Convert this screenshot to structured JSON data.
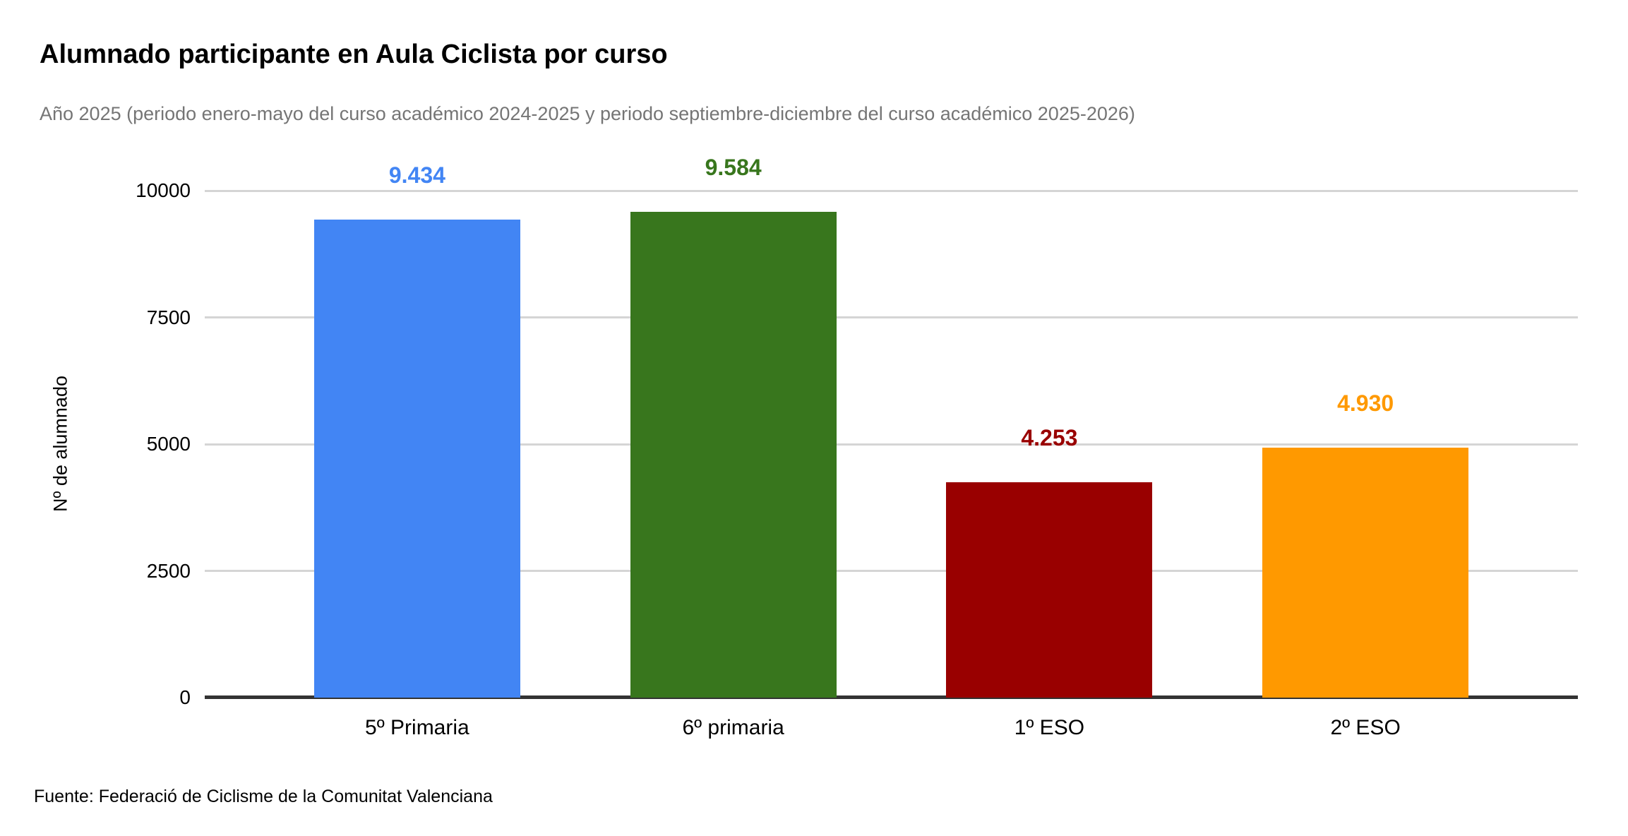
{
  "header": {
    "title": "Alumnado participante en Aula Ciclista por curso",
    "subtitle": "Año 2025 (periodo enero-mayo del curso académico 2024-2025 y periodo septiembre-diciembre del curso académico 2025-2026)"
  },
  "footer": {
    "source": "Fuente: Federació de Ciclisme de la Comunitat Valenciana"
  },
  "chart_data": {
    "type": "bar",
    "title": "Alumnado participante en Aula Ciclista por curso",
    "subtitle": "Año 2025 (periodo enero-mayo del curso académico 2024-2025 y periodo septiembre-diciembre del curso académico 2025-2026)",
    "categories": [
      "5º Primaria",
      "6º primaria",
      "1º ESO",
      "2º ESO"
    ],
    "values": [
      9434,
      9584,
      4253,
      4930
    ],
    "value_labels": [
      "9.434",
      "9.584",
      "4.253",
      "4.930"
    ],
    "bar_colors": [
      "#4285f4",
      "#38761d",
      "#990000",
      "#ff9900"
    ],
    "xlabel": "",
    "ylabel": "Nº de alumnado",
    "ylim": [
      0,
      10000
    ],
    "yticks": [
      0,
      2500,
      5000,
      7500,
      10000
    ],
    "ytick_labels": [
      "0",
      "2500",
      "5000",
      "7500",
      "10000"
    ],
    "grid": "horizontal",
    "legend": "none",
    "colors": {
      "gridline": "#d5d5d5",
      "axis_line": "#333333",
      "subtitle_text": "#757575",
      "text": "#000000",
      "background": "#ffffff"
    }
  }
}
